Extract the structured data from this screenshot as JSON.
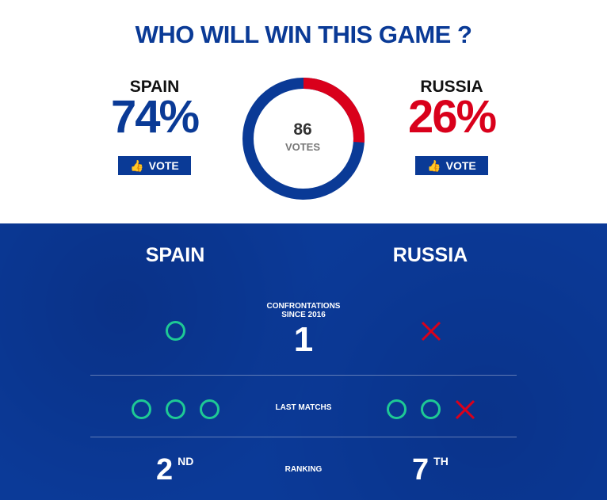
{
  "title": "WHO WILL WIN THIS GAME ?",
  "colors": {
    "blue": "#0a3a96",
    "red": "#d9001b",
    "win": "#1ec995"
  },
  "poll": {
    "home": {
      "name": "SPAIN",
      "percent_label": "74%",
      "percent": 74,
      "vote_label": "VOTE"
    },
    "away": {
      "name": "RUSSIA",
      "percent_label": "26%",
      "percent": 26,
      "vote_label": "VOTE"
    },
    "total": "86",
    "total_label": "VOTES"
  },
  "stats": {
    "home_name": "SPAIN",
    "away_name": "RUSSIA",
    "confrontations": {
      "label_1": "CONFRONTATIONS",
      "label_2": "SINCE 2016",
      "value": "1",
      "home": [
        "win"
      ],
      "away": [
        "loss"
      ]
    },
    "last_matches": {
      "label": "LAST MATCHS",
      "home": [
        "win",
        "win",
        "win"
      ],
      "away": [
        "win",
        "win",
        "loss"
      ]
    },
    "ranking": {
      "label": "RANKING",
      "home": "2",
      "home_suffix": "ND",
      "away": "7",
      "away_suffix": "TH"
    }
  }
}
